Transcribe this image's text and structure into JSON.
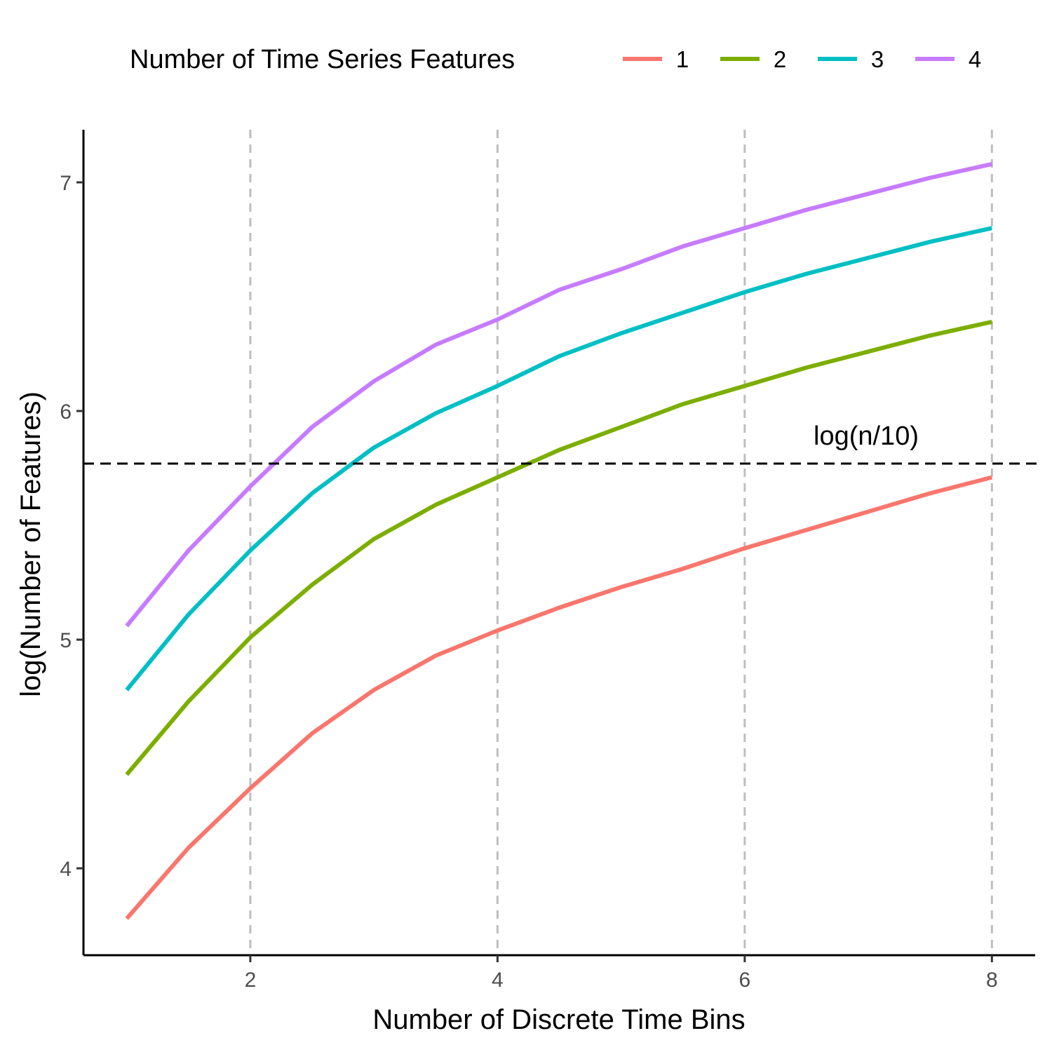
{
  "chart_data": {
    "type": "line",
    "title": "",
    "xlabel": "Number of Discrete Time Bins",
    "ylabel": "log(Number of Features)",
    "xlim": [
      0.65,
      8.35
    ],
    "ylim": [
      3.62,
      7.23
    ],
    "x_ticks": [
      2,
      4,
      6,
      8
    ],
    "y_ticks": [
      4,
      5,
      6,
      7
    ],
    "x_tick_labels": [
      "2",
      "4",
      "6",
      "8"
    ],
    "y_tick_labels": [
      "4",
      "5",
      "6",
      "7"
    ],
    "vertical_gridlines": [
      2,
      4,
      6,
      8
    ],
    "grid": "vertical dashed lines at x ticks",
    "legend_title": "Number of Time Series Features",
    "legend_position": "top",
    "reference_line": {
      "y": 5.77,
      "label": "log(n/10)",
      "style": "dashed",
      "color": "#000000"
    },
    "x": [
      1,
      1.5,
      2,
      2.5,
      3,
      3.5,
      4,
      4.5,
      5,
      5.5,
      6,
      6.5,
      7,
      7.5,
      8
    ],
    "series": [
      {
        "name": "1",
        "color": "#F8766D",
        "values": [
          3.78,
          4.09,
          4.35,
          4.59,
          4.78,
          4.93,
          5.04,
          5.14,
          5.23,
          5.31,
          5.4,
          5.48,
          5.56,
          5.64,
          5.71
        ]
      },
      {
        "name": "2",
        "color": "#7CAE00",
        "values": [
          4.41,
          4.73,
          5.01,
          5.24,
          5.44,
          5.59,
          5.71,
          5.83,
          5.93,
          6.03,
          6.11,
          6.19,
          6.26,
          6.33,
          6.39
        ]
      },
      {
        "name": "3",
        "color": "#00BFC4",
        "values": [
          4.78,
          5.11,
          5.39,
          5.64,
          5.84,
          5.99,
          6.11,
          6.24,
          6.34,
          6.43,
          6.52,
          6.6,
          6.67,
          6.74,
          6.8
        ]
      },
      {
        "name": "4",
        "color": "#C77CFF",
        "values": [
          5.06,
          5.39,
          5.67,
          5.93,
          6.13,
          6.29,
          6.4,
          6.53,
          6.62,
          6.72,
          6.8,
          6.88,
          6.95,
          7.02,
          7.08
        ]
      }
    ]
  }
}
